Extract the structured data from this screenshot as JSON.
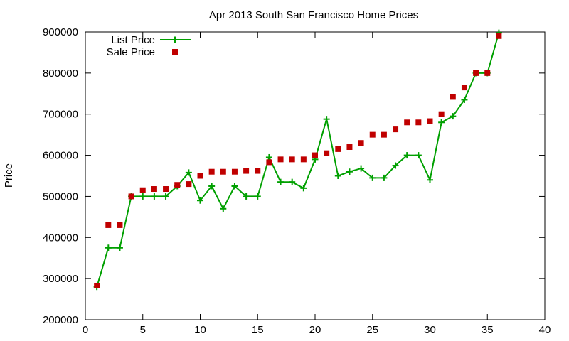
{
  "chart_data": {
    "type": "line",
    "title": "Apr 2013 South San Francisco Home Prices",
    "xlabel": "",
    "ylabel": "Price",
    "xlim": [
      0,
      40
    ],
    "ylim": [
      200000,
      900000
    ],
    "xticks": [
      0,
      5,
      10,
      15,
      20,
      25,
      30,
      35,
      40
    ],
    "yticks": [
      200000,
      300000,
      400000,
      500000,
      600000,
      700000,
      800000,
      900000
    ],
    "grid": false,
    "legend_position": "top-left",
    "series": [
      {
        "name": "List Price",
        "style": "line-with-plus-markers",
        "color": "#00a000",
        "x": [
          1,
          2,
          3,
          4,
          5,
          6,
          7,
          8,
          9,
          10,
          11,
          12,
          13,
          14,
          15,
          16,
          17,
          18,
          19,
          20,
          21,
          22,
          23,
          24,
          25,
          26,
          27,
          28,
          29,
          30,
          31,
          32,
          33,
          34,
          35,
          36
        ],
        "values": [
          280000,
          375000,
          375000,
          500000,
          500000,
          500000,
          500000,
          525000,
          558000,
          490000,
          525000,
          470000,
          525000,
          500000,
          500000,
          595000,
          535000,
          535000,
          520000,
          590000,
          688000,
          550000,
          560000,
          568000,
          545000,
          545000,
          575000,
          600000,
          600000,
          540000,
          680000,
          695000,
          735000,
          800000,
          800000,
          898000
        ]
      },
      {
        "name": "Sale Price",
        "style": "square-markers",
        "color": "#c00000",
        "x": [
          1,
          2,
          3,
          4,
          5,
          6,
          7,
          8,
          9,
          10,
          11,
          12,
          13,
          14,
          15,
          16,
          17,
          18,
          19,
          20,
          21,
          22,
          23,
          24,
          25,
          26,
          27,
          28,
          29,
          30,
          31,
          32,
          33,
          34,
          35,
          36
        ],
        "values": [
          283000,
          430000,
          430000,
          500000,
          515000,
          518000,
          518000,
          528000,
          530000,
          550000,
          560000,
          560000,
          560000,
          562000,
          562000,
          583000,
          590000,
          590000,
          590000,
          600000,
          605000,
          615000,
          620000,
          630000,
          650000,
          650000,
          663000,
          680000,
          680000,
          683000,
          700000,
          742000,
          765000,
          800000,
          800000,
          890000
        ]
      }
    ]
  }
}
